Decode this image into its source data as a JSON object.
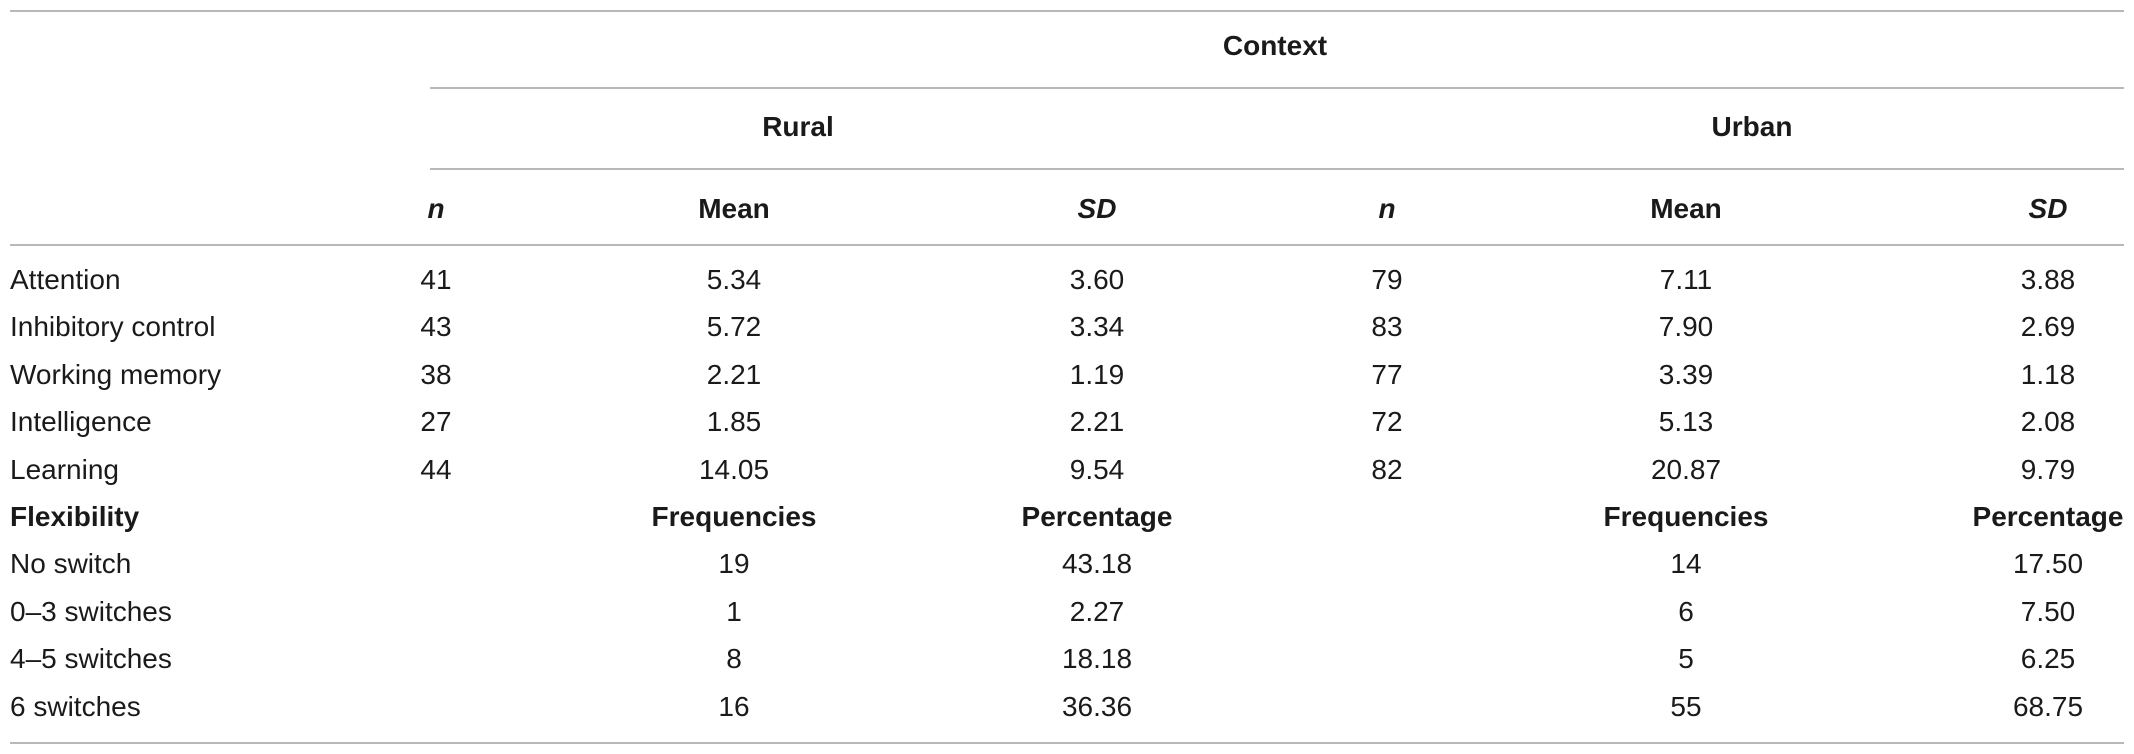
{
  "header": {
    "context": "Context",
    "groups": [
      "Rural",
      "Urban"
    ],
    "columns": [
      "n",
      "Mean",
      "SD",
      "n",
      "Mean",
      "SD"
    ]
  },
  "rows": [
    {
      "label": "Attention",
      "values": [
        "41",
        "5.34",
        "3.60",
        "79",
        "7.11",
        "3.88"
      ]
    },
    {
      "label": "Inhibitory control",
      "values": [
        "43",
        "5.72",
        "3.34",
        "83",
        "7.90",
        "2.69"
      ]
    },
    {
      "label": "Working memory",
      "values": [
        "38",
        "2.21",
        "1.19",
        "77",
        "3.39",
        "1.18"
      ]
    },
    {
      "label": "Intelligence",
      "values": [
        "27",
        "1.85",
        "2.21",
        "72",
        "5.13",
        "2.08"
      ]
    },
    {
      "label": "Learning",
      "values": [
        "44",
        "14.05",
        "9.54",
        "82",
        "20.87",
        "9.79"
      ]
    }
  ],
  "flexibility": {
    "label": "Flexibility",
    "columns": [
      "Frequencies",
      "Percentage",
      "Frequencies",
      "Percentage"
    ],
    "rows": [
      {
        "label": "No switch",
        "values": [
          "19",
          "43.18",
          "14",
          "17.50"
        ]
      },
      {
        "label": "0–3 switches",
        "values": [
          "1",
          "2.27",
          "6",
          "7.50"
        ]
      },
      {
        "label": "4–5 switches",
        "values": [
          "8",
          "18.18",
          "5",
          "6.25"
        ]
      },
      {
        "label": "6 switches",
        "values": [
          "16",
          "36.36",
          "55",
          "68.75"
        ]
      }
    ]
  }
}
